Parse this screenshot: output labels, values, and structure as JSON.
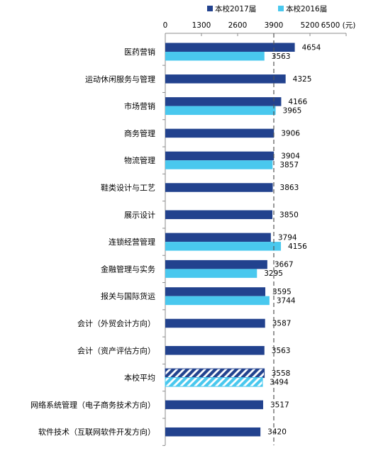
{
  "chart_data": {
    "type": "bar",
    "orientation": "horizontal",
    "unit": "(元)",
    "xlim": [
      0,
      6500
    ],
    "ticks": [
      0,
      1300,
      2600,
      3900,
      5200,
      6500
    ],
    "reference_line": {
      "value": 3900,
      "style": "dashed"
    },
    "legend": {
      "position": "top",
      "items": [
        {
          "name": "本校2017届",
          "color": "#22428E"
        },
        {
          "name": "本校2016届",
          "color": "#49C8EE"
        }
      ]
    },
    "categories": [
      "医药营销",
      "运动休闲服务与管理",
      "市场营销",
      "商务管理",
      "物流管理",
      "鞋类设计与工艺",
      "展示设计",
      "连锁经营管理",
      "金融管理与实务",
      "报关与国际货运",
      "会计（外贸会计方向）",
      "会计（资产评估方向）",
      "本校平均",
      "网络系统管理（电子商务技术方向）",
      "软件技术（互联网软件开发方向）"
    ],
    "series": [
      {
        "name": "本校2017届",
        "color": "#22428E",
        "values": [
          4654,
          4325,
          4166,
          3906,
          3904,
          3863,
          3850,
          3794,
          3667,
          3595,
          3587,
          3563,
          3558,
          3517,
          3420
        ]
      },
      {
        "name": "本校2016届",
        "color": "#49C8EE",
        "values": [
          3563,
          null,
          3965,
          null,
          3857,
          null,
          null,
          4156,
          3295,
          3744,
          null,
          null,
          3494,
          null,
          null
        ]
      }
    ],
    "hatched_categories": [
      "本校平均"
    ]
  }
}
